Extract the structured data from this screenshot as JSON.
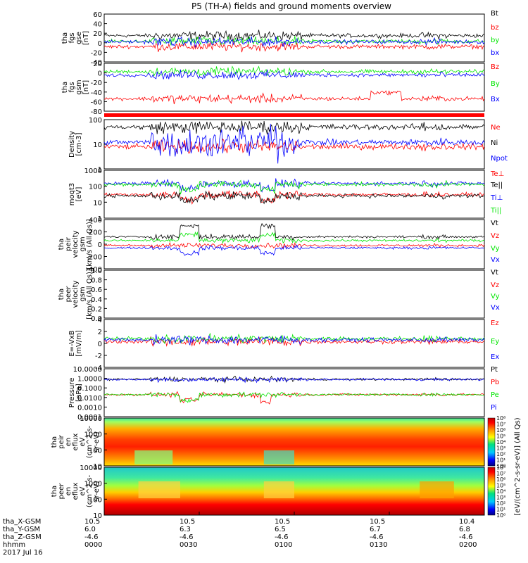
{
  "title": "P5 (TH-A) fields and ground moments overview",
  "colors": {
    "black": "#000000",
    "red": "#ff0000",
    "green": "#00e600",
    "blue": "#0000ff",
    "teal": "#00a0a0"
  },
  "chart_data": {
    "type": "line",
    "x_axis": {
      "time_ticks": [
        "0000",
        "0030",
        "0100",
        "0130",
        "0200"
      ],
      "rows": [
        {
          "label": "tha_X-GSM",
          "values": [
            "10.5",
            "10.5",
            "10.5",
            "10.5",
            "10.4"
          ]
        },
        {
          "label": "tha_Y-GSM",
          "values": [
            "6.0",
            "6.3",
            "6.5",
            "6.7",
            "6.8"
          ]
        },
        {
          "label": "tha_Z-GSM",
          "values": [
            "-4.6",
            "-4.6",
            "-4.6",
            "-4.6",
            "-4.6"
          ]
        },
        {
          "label": "hhmm",
          "values": [
            "0000",
            "0030",
            "0100",
            "0130",
            "0200"
          ]
        }
      ],
      "date": "2017 Jul 16"
    },
    "panels": [
      {
        "id": "fgs-gse",
        "ylabel": [
          "tha",
          "fgs",
          "gse",
          "[nT]"
        ],
        "ylim": [
          -40,
          60
        ],
        "yticks": [
          "60",
          "40",
          "20",
          "0",
          "-20",
          "-40"
        ],
        "series": [
          {
            "name": "Bt",
            "color": "black",
            "base": 15
          },
          {
            "name": "bz",
            "color": "red",
            "base": -8
          },
          {
            "name": "by",
            "color": "green",
            "base": 3
          },
          {
            "name": "bx",
            "color": "blue",
            "base": 2
          }
        ]
      },
      {
        "id": "fgs-gsm",
        "ylabel": [
          "tha",
          "fgs",
          "gsm",
          "[nT]"
        ],
        "ylim": [
          -90,
          25
        ],
        "yticks": [
          "20",
          "0",
          "-20",
          "-40",
          "-60",
          "-80"
        ],
        "series": [
          {
            "name": "Bz",
            "color": "red",
            "base": -60
          },
          {
            "name": "By",
            "color": "green",
            "base": 5
          },
          {
            "name": "Bx",
            "color": "blue",
            "base": -3
          }
        ]
      },
      {
        "id": "density",
        "ylabel": [
          "Density",
          "[cm-3]"
        ],
        "ylim": [
          1,
          100
        ],
        "yticks": [
          "100",
          "10",
          "1"
        ],
        "series": [
          {
            "name": "Ne",
            "color": "red",
            "base": 8
          },
          {
            "name": "Ni",
            "color": "black",
            "base": 50
          },
          {
            "name": "Npot",
            "color": "blue",
            "base": 12
          }
        ]
      },
      {
        "id": "temperature",
        "ylabel": [
          "moqt3",
          "[eV]"
        ],
        "ylim": [
          1,
          1000
        ],
        "yticks": [
          "1000",
          "100",
          "10",
          "1"
        ],
        "series": [
          {
            "name": "Te⊥",
            "color": "red",
            "base": 30
          },
          {
            "name": "Te||",
            "color": "black",
            "base": 25
          },
          {
            "name": "Ti⊥",
            "color": "blue",
            "base": 150
          },
          {
            "name": "Ti||",
            "color": "green",
            "base": 130
          }
        ]
      },
      {
        "id": "peir-velocity",
        "ylabel": [
          "tha",
          "peir",
          "velocity",
          "gsm",
          "[km/s (All Qs)]"
        ],
        "ylim": [
          -400,
          400
        ],
        "yticks": [
          "400",
          "200",
          "0",
          "-200",
          "-400"
        ],
        "series": [
          {
            "name": "Vt",
            "color": "black",
            "base": 120
          },
          {
            "name": "Vz",
            "color": "red",
            "base": -20
          },
          {
            "name": "Vy",
            "color": "green",
            "base": 60
          },
          {
            "name": "Vx",
            "color": "blue",
            "base": -60
          }
        ]
      },
      {
        "id": "peer-velocity",
        "ylabel": [
          "tha",
          "peer",
          "velocity",
          "gsm",
          "[km/s (All Qs)]"
        ],
        "ylim": [
          0,
          1
        ],
        "yticks": [
          "1.0",
          "0.8",
          "0.6",
          "0.4",
          "0.2",
          "0.0"
        ],
        "series": [
          {
            "name": "Vt",
            "color": "black"
          },
          {
            "name": "Vz",
            "color": "red"
          },
          {
            "name": "Vy",
            "color": "green"
          },
          {
            "name": "Vx",
            "color": "blue"
          }
        ]
      },
      {
        "id": "efield",
        "ylabel": [
          "E=-VxB",
          "[mV/m]"
        ],
        "ylim": [
          -4,
          4
        ],
        "yticks": [
          "4",
          "2",
          "0",
          "-2",
          "-4"
        ],
        "series": [
          {
            "name": "Ez",
            "color": "red",
            "base": 0.3
          },
          {
            "name": "Ey",
            "color": "green",
            "base": 0.8
          },
          {
            "name": "Ex",
            "color": "blue",
            "base": 0.6
          }
        ]
      },
      {
        "id": "pressure",
        "ylabel": [
          "Pressure",
          "[nPa]"
        ],
        "ylim": [
          0.0001,
          10
        ],
        "yticks": [
          "10.0000",
          "1.0000",
          "0.1000",
          "0.0100",
          "0.0010",
          "0.0001"
        ],
        "series": [
          {
            "name": "Pt",
            "color": "black",
            "base": 0.8
          },
          {
            "name": "Pb",
            "color": "red",
            "base": 0.02
          },
          {
            "name": "Pe",
            "color": "green",
            "base": 0.02
          },
          {
            "name": "Pi",
            "color": "blue",
            "base": 0.75
          }
        ]
      },
      {
        "id": "peir-eflux",
        "ylabel": [
          "tha",
          "peir",
          "en",
          "eflux",
          "eV",
          "(cm^2-s-",
          "sr-eV)"
        ],
        "ylim": [
          5,
          30000
        ],
        "yticks": [
          "10000",
          "1000",
          "100",
          "10"
        ]
      },
      {
        "id": "peer-eflux",
        "ylabel": [
          "tha",
          "peer",
          "en",
          "eflux",
          "eV",
          "(cm^2-s-",
          "sr-eV)"
        ],
        "ylim": [
          5,
          30000
        ],
        "yticks": [
          "10000",
          "1000",
          "100",
          "10"
        ]
      }
    ],
    "colorbar": {
      "label": "[eV/(cm^2-s-sr-eV)] (All Qs)",
      "ticks_top": [
        "10⁸",
        "10⁷",
        "10⁶",
        "10⁵",
        "10⁴",
        "10³",
        "10²",
        "10¹",
        "10⁰"
      ],
      "ticks_bottom": [
        "10⁸",
        "10⁷",
        "10⁶",
        "10⁵",
        "10⁴",
        "10³",
        "10²",
        "10¹",
        "10⁰"
      ]
    }
  }
}
